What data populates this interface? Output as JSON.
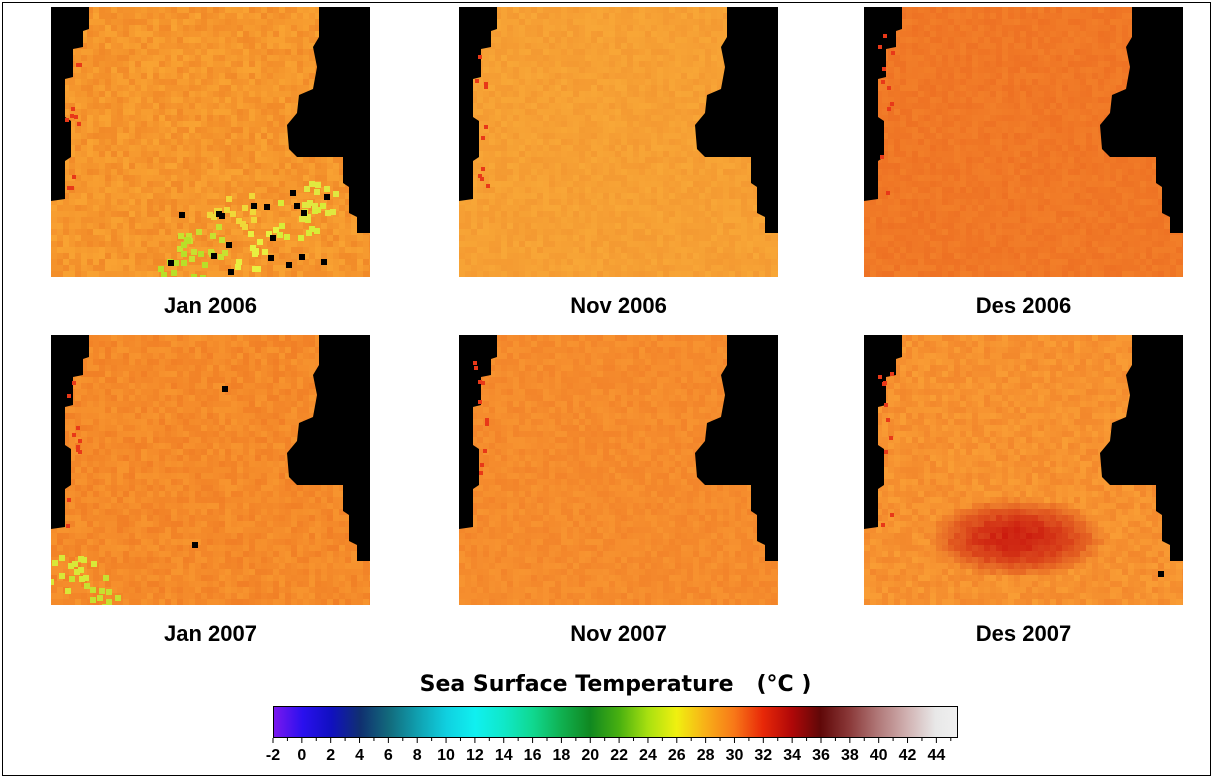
{
  "maps": [
    {
      "caption": "Jan 2006",
      "variant": "jan2006"
    },
    {
      "caption": "Nov 2006",
      "variant": "nov2006"
    },
    {
      "caption": "Des 2006",
      "variant": "des2006"
    },
    {
      "caption": "Jan 2007",
      "variant": "jan2007"
    },
    {
      "caption": "Nov 2007",
      "variant": "nov2007"
    },
    {
      "caption": "Des 2007",
      "variant": "des2007"
    }
  ],
  "legend": {
    "title": "Sea Surface Temperature   (°C )",
    "tick_labels": [
      "-2",
      "0",
      "2",
      "4",
      "6",
      "8",
      "10",
      "12",
      "14",
      "16",
      "18",
      "20",
      "22",
      "24",
      "26",
      "28",
      "30",
      "32",
      "34",
      "36",
      "38",
      "40",
      "42",
      "44"
    ],
    "range": [
      -2,
      45.5
    ],
    "colors": [
      {
        "value": -2,
        "color": "#7a18ee"
      },
      {
        "value": 0,
        "color": "#2a10ee"
      },
      {
        "value": 2,
        "color": "#1010c0"
      },
      {
        "value": 4,
        "color": "#103070"
      },
      {
        "value": 6,
        "color": "#126a7c"
      },
      {
        "value": 8,
        "color": "#10a0b0"
      },
      {
        "value": 10,
        "color": "#10d0e0"
      },
      {
        "value": 12,
        "color": "#10f0f0"
      },
      {
        "value": 14,
        "color": "#10e8c8"
      },
      {
        "value": 16,
        "color": "#10d890"
      },
      {
        "value": 18,
        "color": "#10b050"
      },
      {
        "value": 20,
        "color": "#108820"
      },
      {
        "value": 22,
        "color": "#48b010"
      },
      {
        "value": 24,
        "color": "#a8e010"
      },
      {
        "value": 26,
        "color": "#f0f010"
      },
      {
        "value": 28,
        "color": "#f8b018"
      },
      {
        "value": 30,
        "color": "#f87818"
      },
      {
        "value": 32,
        "color": "#e82808"
      },
      {
        "value": 34,
        "color": "#b00808"
      },
      {
        "value": 36,
        "color": "#600808"
      },
      {
        "value": 38,
        "color": "#8a3838"
      },
      {
        "value": 40,
        "color": "#b07878"
      },
      {
        "value": 42,
        "color": "#d0b0b0"
      },
      {
        "value": 44,
        "color": "#e8e8e8"
      },
      {
        "value": 45.5,
        "color": "#f0f0f0"
      }
    ]
  },
  "colors": {
    "land": "#000000",
    "ocean_base": "#f5962a"
  }
}
